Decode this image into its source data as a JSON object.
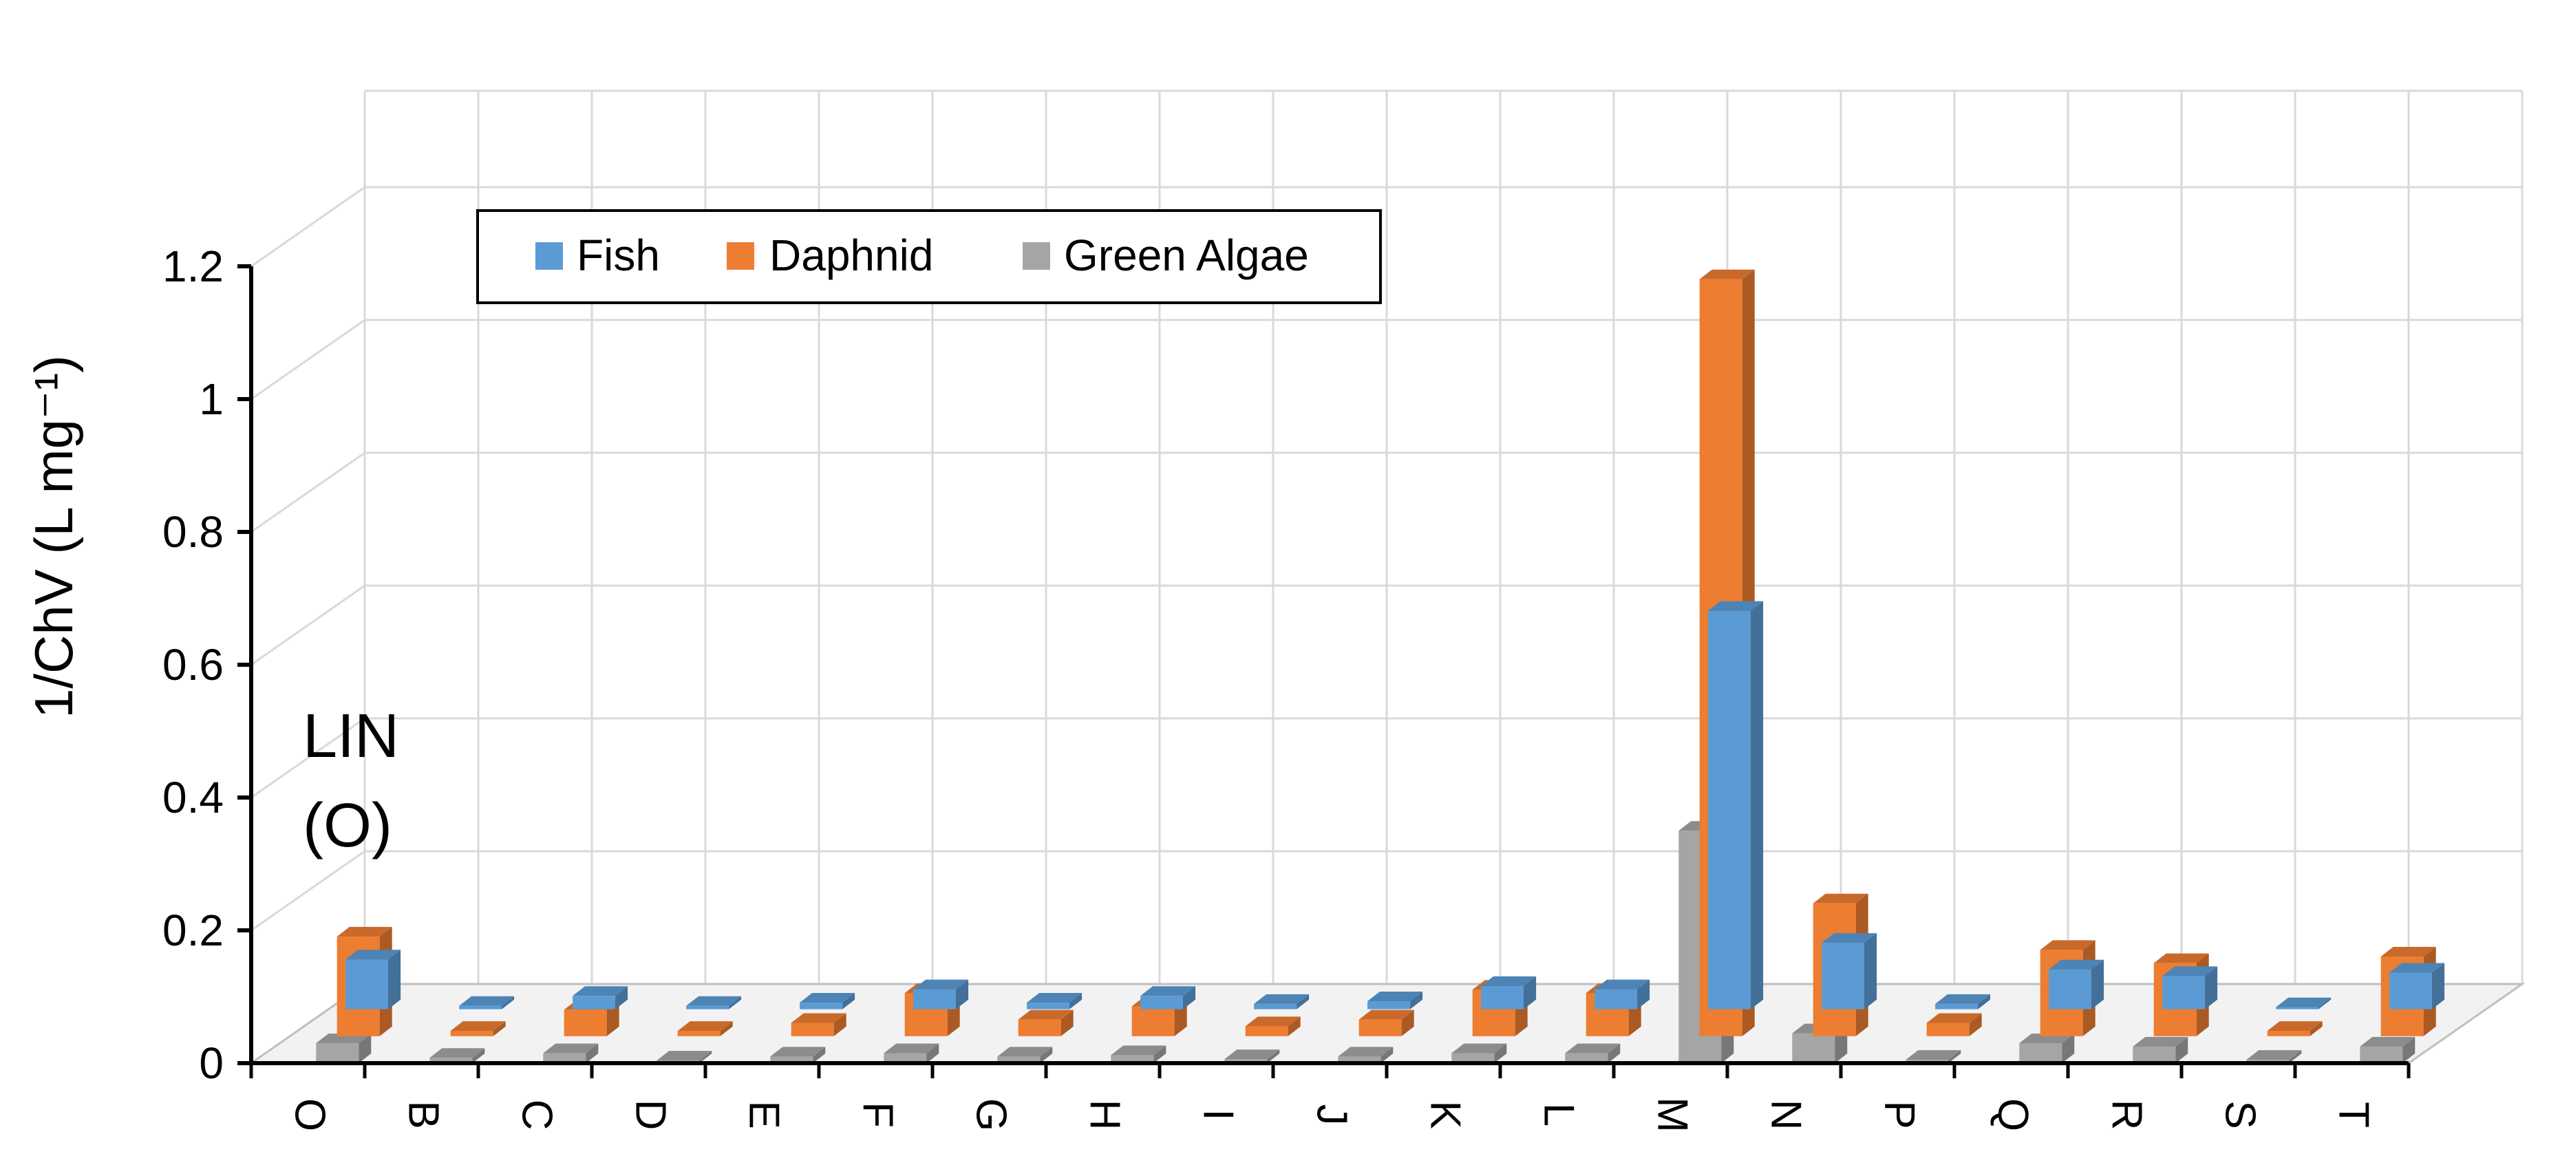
{
  "chart_data": {
    "type": "bar",
    "chart_style": "3d-clustered-column",
    "ylabel": "1/ChV (L mg⁻¹)",
    "annotation": [
      "LIN",
      "(O)"
    ],
    "ylim": [
      0,
      1.2
    ],
    "yticks": [
      "0",
      "0.2",
      "0.4",
      "0.6",
      "0.8",
      "1",
      "1.2"
    ],
    "ytick_values": [
      0,
      0.2,
      0.4,
      0.6,
      0.8,
      1.0,
      1.2
    ],
    "grid": true,
    "legend_position": "top-left",
    "categories": [
      "O",
      "B",
      "C",
      "D",
      "E",
      "F",
      "G",
      "H",
      "I",
      "J",
      "K",
      "L",
      "M",
      "N",
      "P",
      "Q",
      "R",
      "S",
      "T"
    ],
    "series": [
      {
        "name": "Fish",
        "color": "#5b9bd5",
        "values": [
          0.075,
          0.005,
          0.02,
          0.005,
          0.01,
          0.03,
          0.01,
          0.02,
          0.008,
          0.012,
          0.035,
          0.03,
          0.6,
          0.1,
          0.008,
          0.06,
          0.05,
          0.003,
          0.055
        ]
      },
      {
        "name": "Daphnid",
        "color": "#ed7d31",
        "values": [
          0.15,
          0.008,
          0.04,
          0.008,
          0.02,
          0.065,
          0.025,
          0.045,
          0.015,
          0.025,
          0.07,
          0.065,
          1.14,
          0.2,
          0.02,
          0.13,
          0.11,
          0.008,
          0.12
        ]
      },
      {
        "name": "Green Algae",
        "color": "#a5a5a5",
        "values": [
          0.03,
          0.008,
          0.015,
          0.004,
          0.01,
          0.015,
          0.01,
          0.012,
          0.006,
          0.01,
          0.015,
          0.015,
          0.35,
          0.045,
          0.005,
          0.03,
          0.025,
          0.005,
          0.025
        ]
      }
    ]
  }
}
